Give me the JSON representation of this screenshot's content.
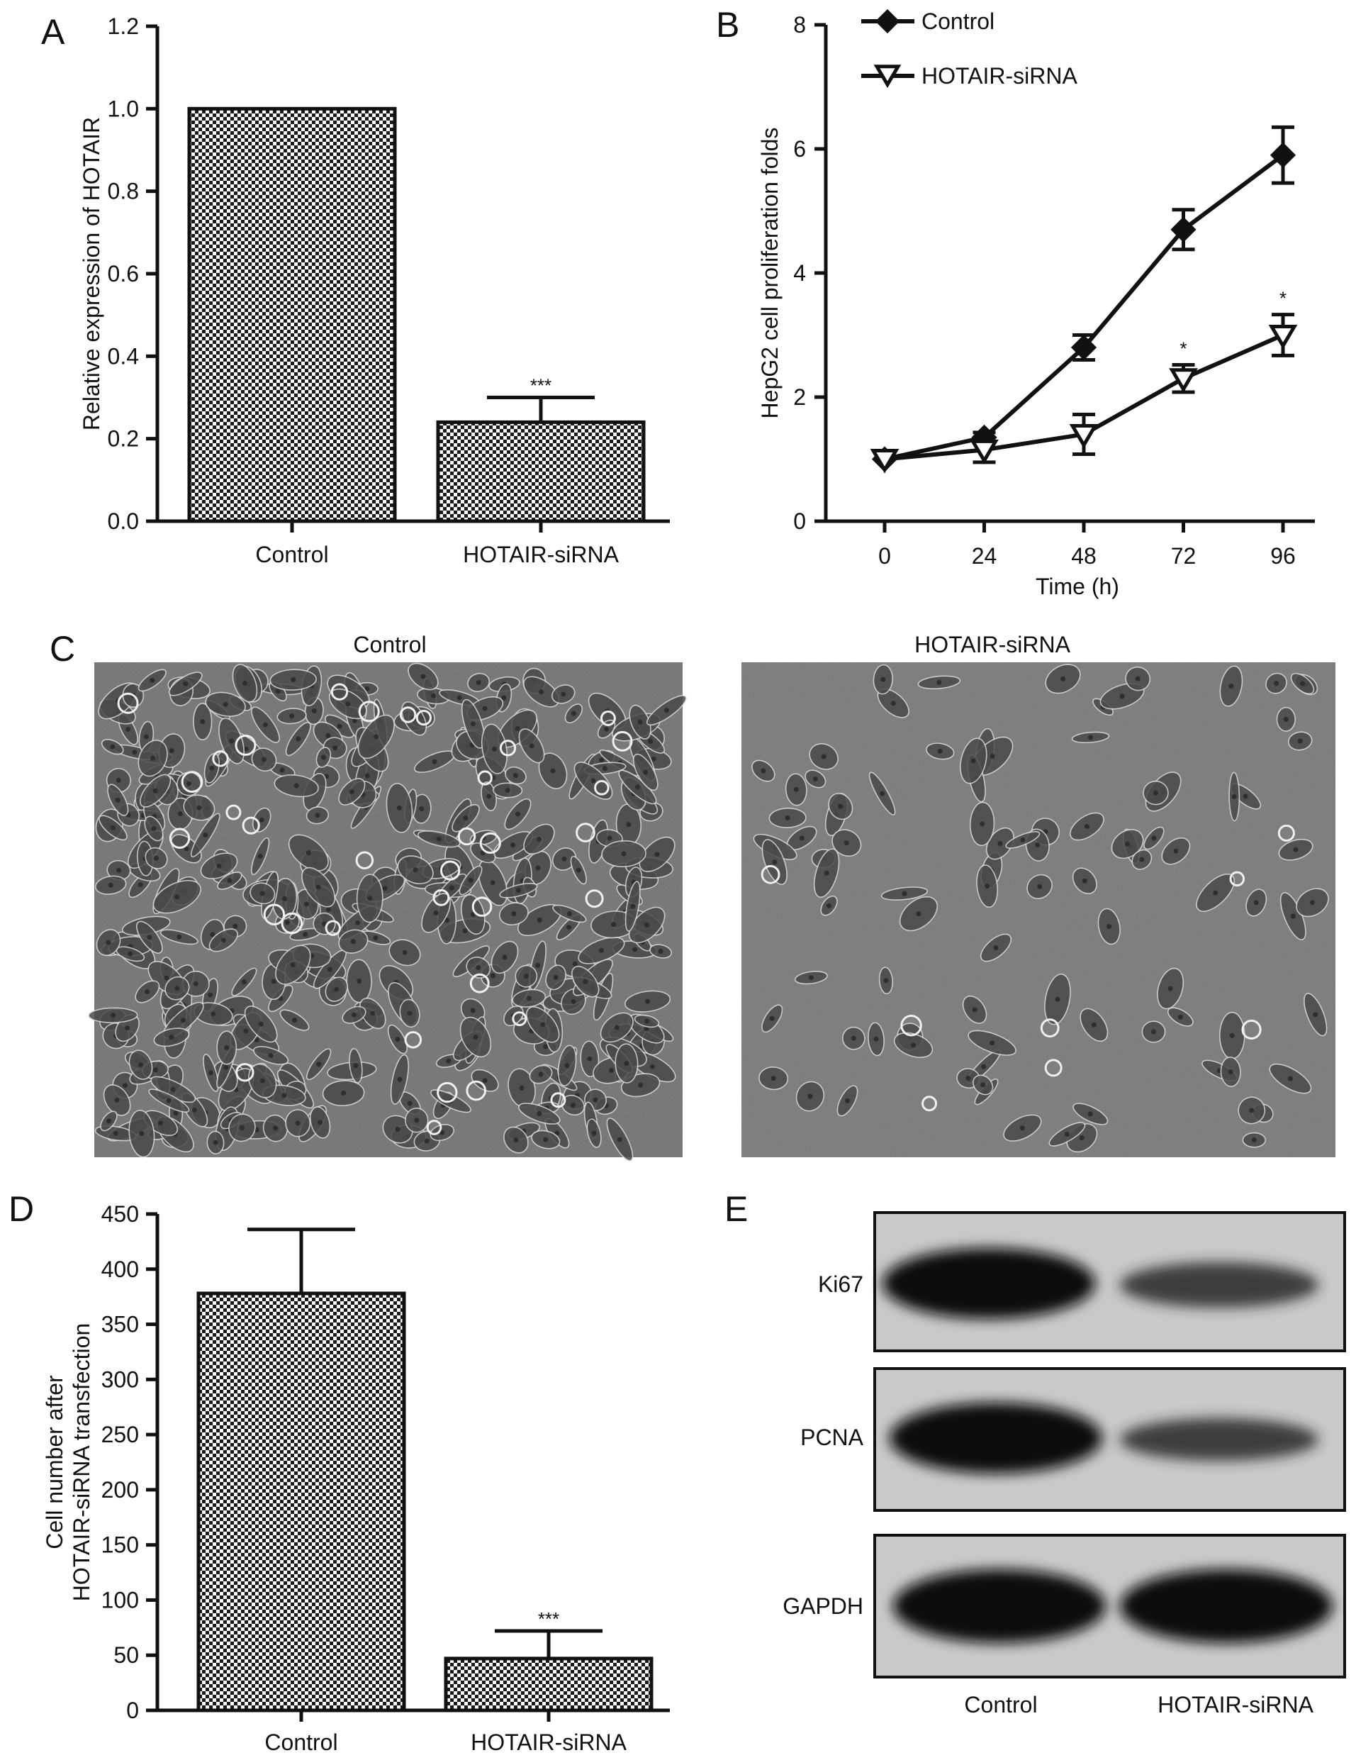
{
  "panel_labels": {
    "a": "A",
    "b": "B",
    "c": "C",
    "d": "D",
    "e": "E"
  },
  "chart_data": [
    {
      "panel": "A",
      "type": "bar",
      "categories": [
        "Control",
        "HOTAIR-siRNA"
      ],
      "values": [
        1.0,
        0.24
      ],
      "errors": [
        0,
        0.06
      ],
      "significance": [
        "",
        "***"
      ],
      "ylabel": "Relative expression of HOTAIR",
      "xlabel": "",
      "ylim": [
        0,
        1.2
      ],
      "yticks": [
        "0.0",
        "0.2",
        "0.4",
        "0.6",
        "0.8",
        "1.0",
        "1.2"
      ],
      "bar_pattern": "checkerboard"
    },
    {
      "panel": "B",
      "type": "line",
      "x": [
        0,
        24,
        48,
        72,
        96
      ],
      "xticks": [
        "0",
        "24",
        "48",
        "72",
        "96"
      ],
      "xlabel": "Time (h)",
      "ylabel": "HepG2 cell proliferation folds",
      "ylim": [
        0,
        8
      ],
      "yticks": [
        "0",
        "2",
        "4",
        "6",
        "8"
      ],
      "legend_position": "top-left",
      "series": [
        {
          "name": "Control",
          "marker": "filled-diamond",
          "values": [
            1.0,
            1.35,
            2.8,
            4.7,
            5.9
          ],
          "errors": [
            0.05,
            0.08,
            0.2,
            0.32,
            0.45
          ]
        },
        {
          "name": "HOTAIR-siRNA",
          "marker": "open-triangle-down",
          "values": [
            1.0,
            1.15,
            1.4,
            2.3,
            3.0
          ],
          "errors": [
            0.05,
            0.2,
            0.32,
            0.22,
            0.33
          ],
          "significance": [
            "",
            "",
            "",
            "*",
            "*"
          ]
        }
      ]
    },
    {
      "panel": "D",
      "type": "bar",
      "categories": [
        "Control",
        "HOTAIR-siRNA"
      ],
      "values": [
        378,
        47
      ],
      "errors": [
        58,
        25
      ],
      "significance": [
        "",
        "***"
      ],
      "ylabel_lines": [
        "Cell number after",
        "HOTAIR-siRNA transfection"
      ],
      "xlabel": "",
      "ylim": [
        0,
        450
      ],
      "yticks": [
        "0",
        "50",
        "100",
        "150",
        "200",
        "250",
        "300",
        "350",
        "400",
        "450"
      ],
      "bar_pattern": "checkerboard"
    }
  ],
  "microscopy": {
    "titles": [
      "Control",
      "HOTAIR-siRNA"
    ]
  },
  "western_blot": {
    "rows": [
      "Ki67",
      "PCNA",
      "GAPDH"
    ],
    "columns": [
      "Control",
      "HOTAIR-siRNA"
    ],
    "band_intensity": [
      [
        1.0,
        0.55
      ],
      [
        1.0,
        0.5
      ],
      [
        1.0,
        1.0
      ]
    ]
  }
}
